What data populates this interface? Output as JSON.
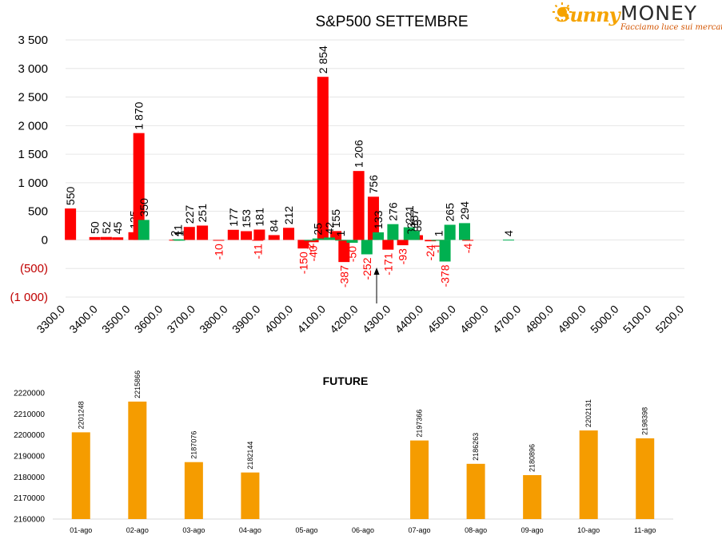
{
  "brand": {
    "name_script": "Sunny",
    "name_caps": "MONEY",
    "tagline": "Facciamo luce sui mercati"
  },
  "colors": {
    "red": "#ff0000",
    "green": "#00b050",
    "orange": "#f59c00",
    "neg_label": "#ff0000",
    "grid": "#e6e6e6",
    "text": "#000000"
  },
  "chart_data": [
    {
      "type": "bar",
      "title": "S&P500 SETTEMBRE",
      "xlabel": "",
      "ylabel": "",
      "ylim": [
        -1000,
        3500
      ],
      "xlim": [
        3300,
        5200
      ],
      "bar_width": 14,
      "grid": true,
      "y_ticks": [
        {
          "value": 3500,
          "label": "3 500"
        },
        {
          "value": 3000,
          "label": "3 000"
        },
        {
          "value": 2500,
          "label": "2 500"
        },
        {
          "value": 2000,
          "label": "2 000"
        },
        {
          "value": 1500,
          "label": "1 500"
        },
        {
          "value": 1000,
          "label": "1 000"
        },
        {
          "value": 500,
          "label": "500"
        },
        {
          "value": 0,
          "label": "0"
        },
        {
          "value": -500,
          "label": "(500)"
        },
        {
          "value": -1000,
          "label": "(1 000)"
        }
      ],
      "x_ticks": [
        {
          "value": 3300,
          "label": "3300.0"
        },
        {
          "value": 3400,
          "label": "3400.0"
        },
        {
          "value": 3500,
          "label": "3500.0"
        },
        {
          "value": 3600,
          "label": "3600.0"
        },
        {
          "value": 3700,
          "label": "3700.0"
        },
        {
          "value": 3800,
          "label": "3800.0"
        },
        {
          "value": 3900,
          "label": "3900.0"
        },
        {
          "value": 4000,
          "label": "4000.0"
        },
        {
          "value": 4100,
          "label": "4100.0"
        },
        {
          "value": 4200,
          "label": "4200.0"
        },
        {
          "value": 4300,
          "label": "4300.0"
        },
        {
          "value": 4400,
          "label": "4400.0"
        },
        {
          "value": 4500,
          "label": "4500.0"
        },
        {
          "value": 4600,
          "label": "4600.0"
        },
        {
          "value": 4700,
          "label": "4700.0"
        },
        {
          "value": 4800,
          "label": "4800.0"
        },
        {
          "value": 4900,
          "label": "4900.0"
        },
        {
          "value": 5000,
          "label": "5000.0"
        },
        {
          "value": 5100,
          "label": "5100.0"
        },
        {
          "value": 5200,
          "label": "5200.0"
        }
      ],
      "series": [
        {
          "color": "red",
          "points": [
            {
              "x": 3315,
              "y": 550,
              "label": "550"
            },
            {
              "x": 3390,
              "y": 50,
              "label": "50"
            },
            {
              "x": 3425,
              "y": 52,
              "label": "52"
            },
            {
              "x": 3460,
              "y": 45,
              "label": "45"
            },
            {
              "x": 3510,
              "y": 135,
              "label": "135"
            },
            {
              "x": 3525,
              "y": 1870,
              "label": "1 870"
            },
            {
              "x": 3635,
              "y": 2,
              "label": "2"
            },
            {
              "x": 3680,
              "y": 227,
              "label": "227"
            },
            {
              "x": 3720,
              "y": 251,
              "label": "251"
            },
            {
              "x": 3770,
              "y": -10,
              "label": "-10"
            },
            {
              "x": 3815,
              "y": 177,
              "label": "177"
            },
            {
              "x": 3855,
              "y": 153,
              "label": "153"
            },
            {
              "x": 3890,
              "y": -11,
              "label": "-11"
            },
            {
              "x": 3895,
              "y": 181,
              "label": "181"
            },
            {
              "x": 3940,
              "y": 84,
              "label": "84"
            },
            {
              "x": 3985,
              "y": 212,
              "label": "212"
            },
            {
              "x": 4030,
              "y": -150,
              "label": "-150"
            },
            {
              "x": 4060,
              "y": -40,
              "label": "-40"
            },
            {
              "x": 4090,
              "y": 2854,
              "label": "2 854"
            },
            {
              "x": 4130,
              "y": 155,
              "label": "155"
            },
            {
              "x": 4155,
              "y": -387,
              "label": "-387"
            },
            {
              "x": 4200,
              "y": 1206,
              "label": "1 206"
            },
            {
              "x": 4245,
              "y": 756,
              "label": "756"
            },
            {
              "x": 4290,
              "y": -171,
              "label": "-171"
            },
            {
              "x": 4335,
              "y": -93,
              "label": "-93"
            },
            {
              "x": 4380,
              "y": 83,
              "label": "83"
            },
            {
              "x": 4420,
              "y": -24,
              "label": "-24"
            },
            {
              "x": 4445,
              "y": 1,
              "label": "1"
            },
            {
              "x": 4535,
              "y": -4,
              "label": "-4"
            }
          ]
        },
        {
          "color": "green",
          "points": [
            {
              "x": 3540,
              "y": 350,
              "label": "350"
            },
            {
              "x": 3645,
              "y": 11,
              "label": "11"
            },
            {
              "x": 3650,
              "y": 1,
              "label": "1"
            },
            {
              "x": 4050,
              "y": -2,
              "label": "-2"
            },
            {
              "x": 4075,
              "y": 25,
              "label": "25"
            },
            {
              "x": 4110,
              "y": 42,
              "label": "42"
            },
            {
              "x": 4145,
              "y": 1,
              "label": "1"
            },
            {
              "x": 4180,
              "y": -50,
              "label": "-50"
            },
            {
              "x": 4225,
              "y": -252,
              "label": "-252"
            },
            {
              "x": 4260,
              "y": 133,
              "label": "133"
            },
            {
              "x": 4305,
              "y": 276,
              "label": "276"
            },
            {
              "x": 4355,
              "y": 221,
              "label": "221"
            },
            {
              "x": 4360,
              "y": 33,
              "label": "33"
            },
            {
              "x": 4370,
              "y": 157,
              "label": "157"
            },
            {
              "x": 4440,
              "y": -1,
              "label": "-1"
            },
            {
              "x": 4465,
              "y": -378,
              "label": "-378"
            },
            {
              "x": 4480,
              "y": 265,
              "label": "265"
            },
            {
              "x": 4525,
              "y": 294,
              "label": "294"
            },
            {
              "x": 4660,
              "y": 4,
              "label": "4"
            }
          ]
        }
      ],
      "annotations": [
        {
          "type": "arrow",
          "x": 4255,
          "label": ""
        }
      ]
    },
    {
      "type": "bar",
      "title": "FUTURE",
      "xlabel": "",
      "ylabel": "",
      "ylim": [
        2160000,
        2220000
      ],
      "grid": false,
      "categories": [
        "01-ago",
        "02-ago",
        "03-ago",
        "04-ago",
        "05-ago",
        "06-ago",
        "07-ago",
        "08-ago",
        "09-ago",
        "10-ago",
        "11-ago"
      ],
      "values": [
        2201248,
        2215866,
        2187076,
        2182144,
        null,
        null,
        2197366,
        2186263,
        2180896,
        2202131,
        2198398
      ],
      "value_labels": [
        "2201248",
        "2215866",
        "2187076",
        "2182144",
        "",
        "",
        "2197366",
        "2186263",
        "2180896",
        "2202131",
        "2198398"
      ],
      "y_ticks": [
        {
          "value": 2220000,
          "label": "2220000"
        },
        {
          "value": 2210000,
          "label": "2210000"
        },
        {
          "value": 2200000,
          "label": "2200000"
        },
        {
          "value": 2190000,
          "label": "2190000"
        },
        {
          "value": 2180000,
          "label": "2180000"
        },
        {
          "value": 2170000,
          "label": "2170000"
        },
        {
          "value": 2160000,
          "label": "2160000"
        }
      ],
      "color": "orange"
    }
  ]
}
